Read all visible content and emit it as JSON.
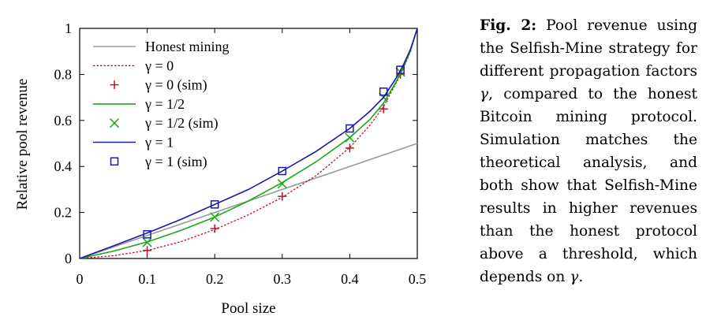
{
  "chart_data": {
    "type": "line",
    "xlabel": "Pool size",
    "ylabel": "Relative pool revenue",
    "xlim": [
      0,
      0.5
    ],
    "ylim": [
      0,
      1
    ],
    "x_ticks": [
      "0",
      "0.1",
      "0.2",
      "0.3",
      "0.4",
      "0.5"
    ],
    "y_ticks": [
      "0",
      "0.2",
      "0.4",
      "0.6",
      "0.8",
      "1"
    ],
    "legend_position": "top-left",
    "grid": false,
    "series": [
      {
        "name": "Honest mining",
        "kind": "line",
        "style": "solid",
        "color": "#999999",
        "x": [
          0,
          0.1,
          0.2,
          0.3,
          0.4,
          0.5
        ],
        "y": [
          0,
          0.1,
          0.2,
          0.3,
          0.4,
          0.5
        ]
      },
      {
        "name": "γ = 0",
        "kind": "line",
        "style": "dotted",
        "color": "#c0102a",
        "x": [
          0,
          0.05,
          0.1,
          0.15,
          0.2,
          0.25,
          0.3,
          0.35,
          0.4,
          0.43,
          0.45,
          0.47,
          0.48,
          0.49,
          0.5
        ],
        "y": [
          0,
          0.012,
          0.035,
          0.073,
          0.126,
          0.19,
          0.266,
          0.36,
          0.482,
          0.58,
          0.66,
          0.77,
          0.83,
          0.9,
          1.0
        ]
      },
      {
        "name": "γ = 0 (sim)",
        "kind": "marker",
        "marker": "plus",
        "color": "#c0102a",
        "x": [
          0.1,
          0.2,
          0.3,
          0.4,
          0.45,
          0.475
        ],
        "y": [
          0.035,
          0.13,
          0.27,
          0.48,
          0.65,
          0.8
        ]
      },
      {
        "name": "γ = 1/2",
        "kind": "line",
        "style": "solid",
        "color": "#1aa81a",
        "x": [
          0,
          0.05,
          0.1,
          0.15,
          0.2,
          0.25,
          0.3,
          0.35,
          0.4,
          0.43,
          0.45,
          0.47,
          0.48,
          0.49,
          0.5
        ],
        "y": [
          0,
          0.032,
          0.072,
          0.122,
          0.18,
          0.25,
          0.33,
          0.42,
          0.525,
          0.605,
          0.675,
          0.775,
          0.835,
          0.905,
          1.0
        ]
      },
      {
        "name": "γ = 1/2 (sim)",
        "kind": "marker",
        "marker": "cross",
        "color": "#1aa81a",
        "x": [
          0.1,
          0.2,
          0.3,
          0.4,
          0.45,
          0.475
        ],
        "y": [
          0.07,
          0.18,
          0.325,
          0.525,
          0.7,
          0.81
        ]
      },
      {
        "name": "γ = 1",
        "kind": "line",
        "style": "solid",
        "color": "#1a1aaa",
        "x": [
          0,
          0.05,
          0.1,
          0.15,
          0.2,
          0.25,
          0.3,
          0.35,
          0.4,
          0.43,
          0.45,
          0.47,
          0.48,
          0.49,
          0.5
        ],
        "y": [
          0,
          0.055,
          0.111,
          0.17,
          0.235,
          0.3,
          0.38,
          0.465,
          0.565,
          0.64,
          0.7,
          0.79,
          0.845,
          0.91,
          1.0
        ]
      },
      {
        "name": "γ = 1 (sim)",
        "kind": "marker",
        "marker": "square",
        "color": "#1a1aaa",
        "x": [
          0.1,
          0.2,
          0.3,
          0.4,
          0.45,
          0.475
        ],
        "y": [
          0.105,
          0.235,
          0.38,
          0.565,
          0.725,
          0.82
        ]
      }
    ]
  },
  "caption": {
    "label": "Fig. 2:",
    "text_before_gamma_1": "Pool revenue using the Selfish-Mine strategy for different propagation factors",
    "gamma_1": "γ",
    "text_middle": ", compared to the honest Bitcoin mining protocol. Simulation matches the theoretical analysis, and both show that Selfish-Mine results in higher revenues than the honest protocol above a threshold, which depends on",
    "gamma_2": "γ",
    "text_end": "."
  }
}
